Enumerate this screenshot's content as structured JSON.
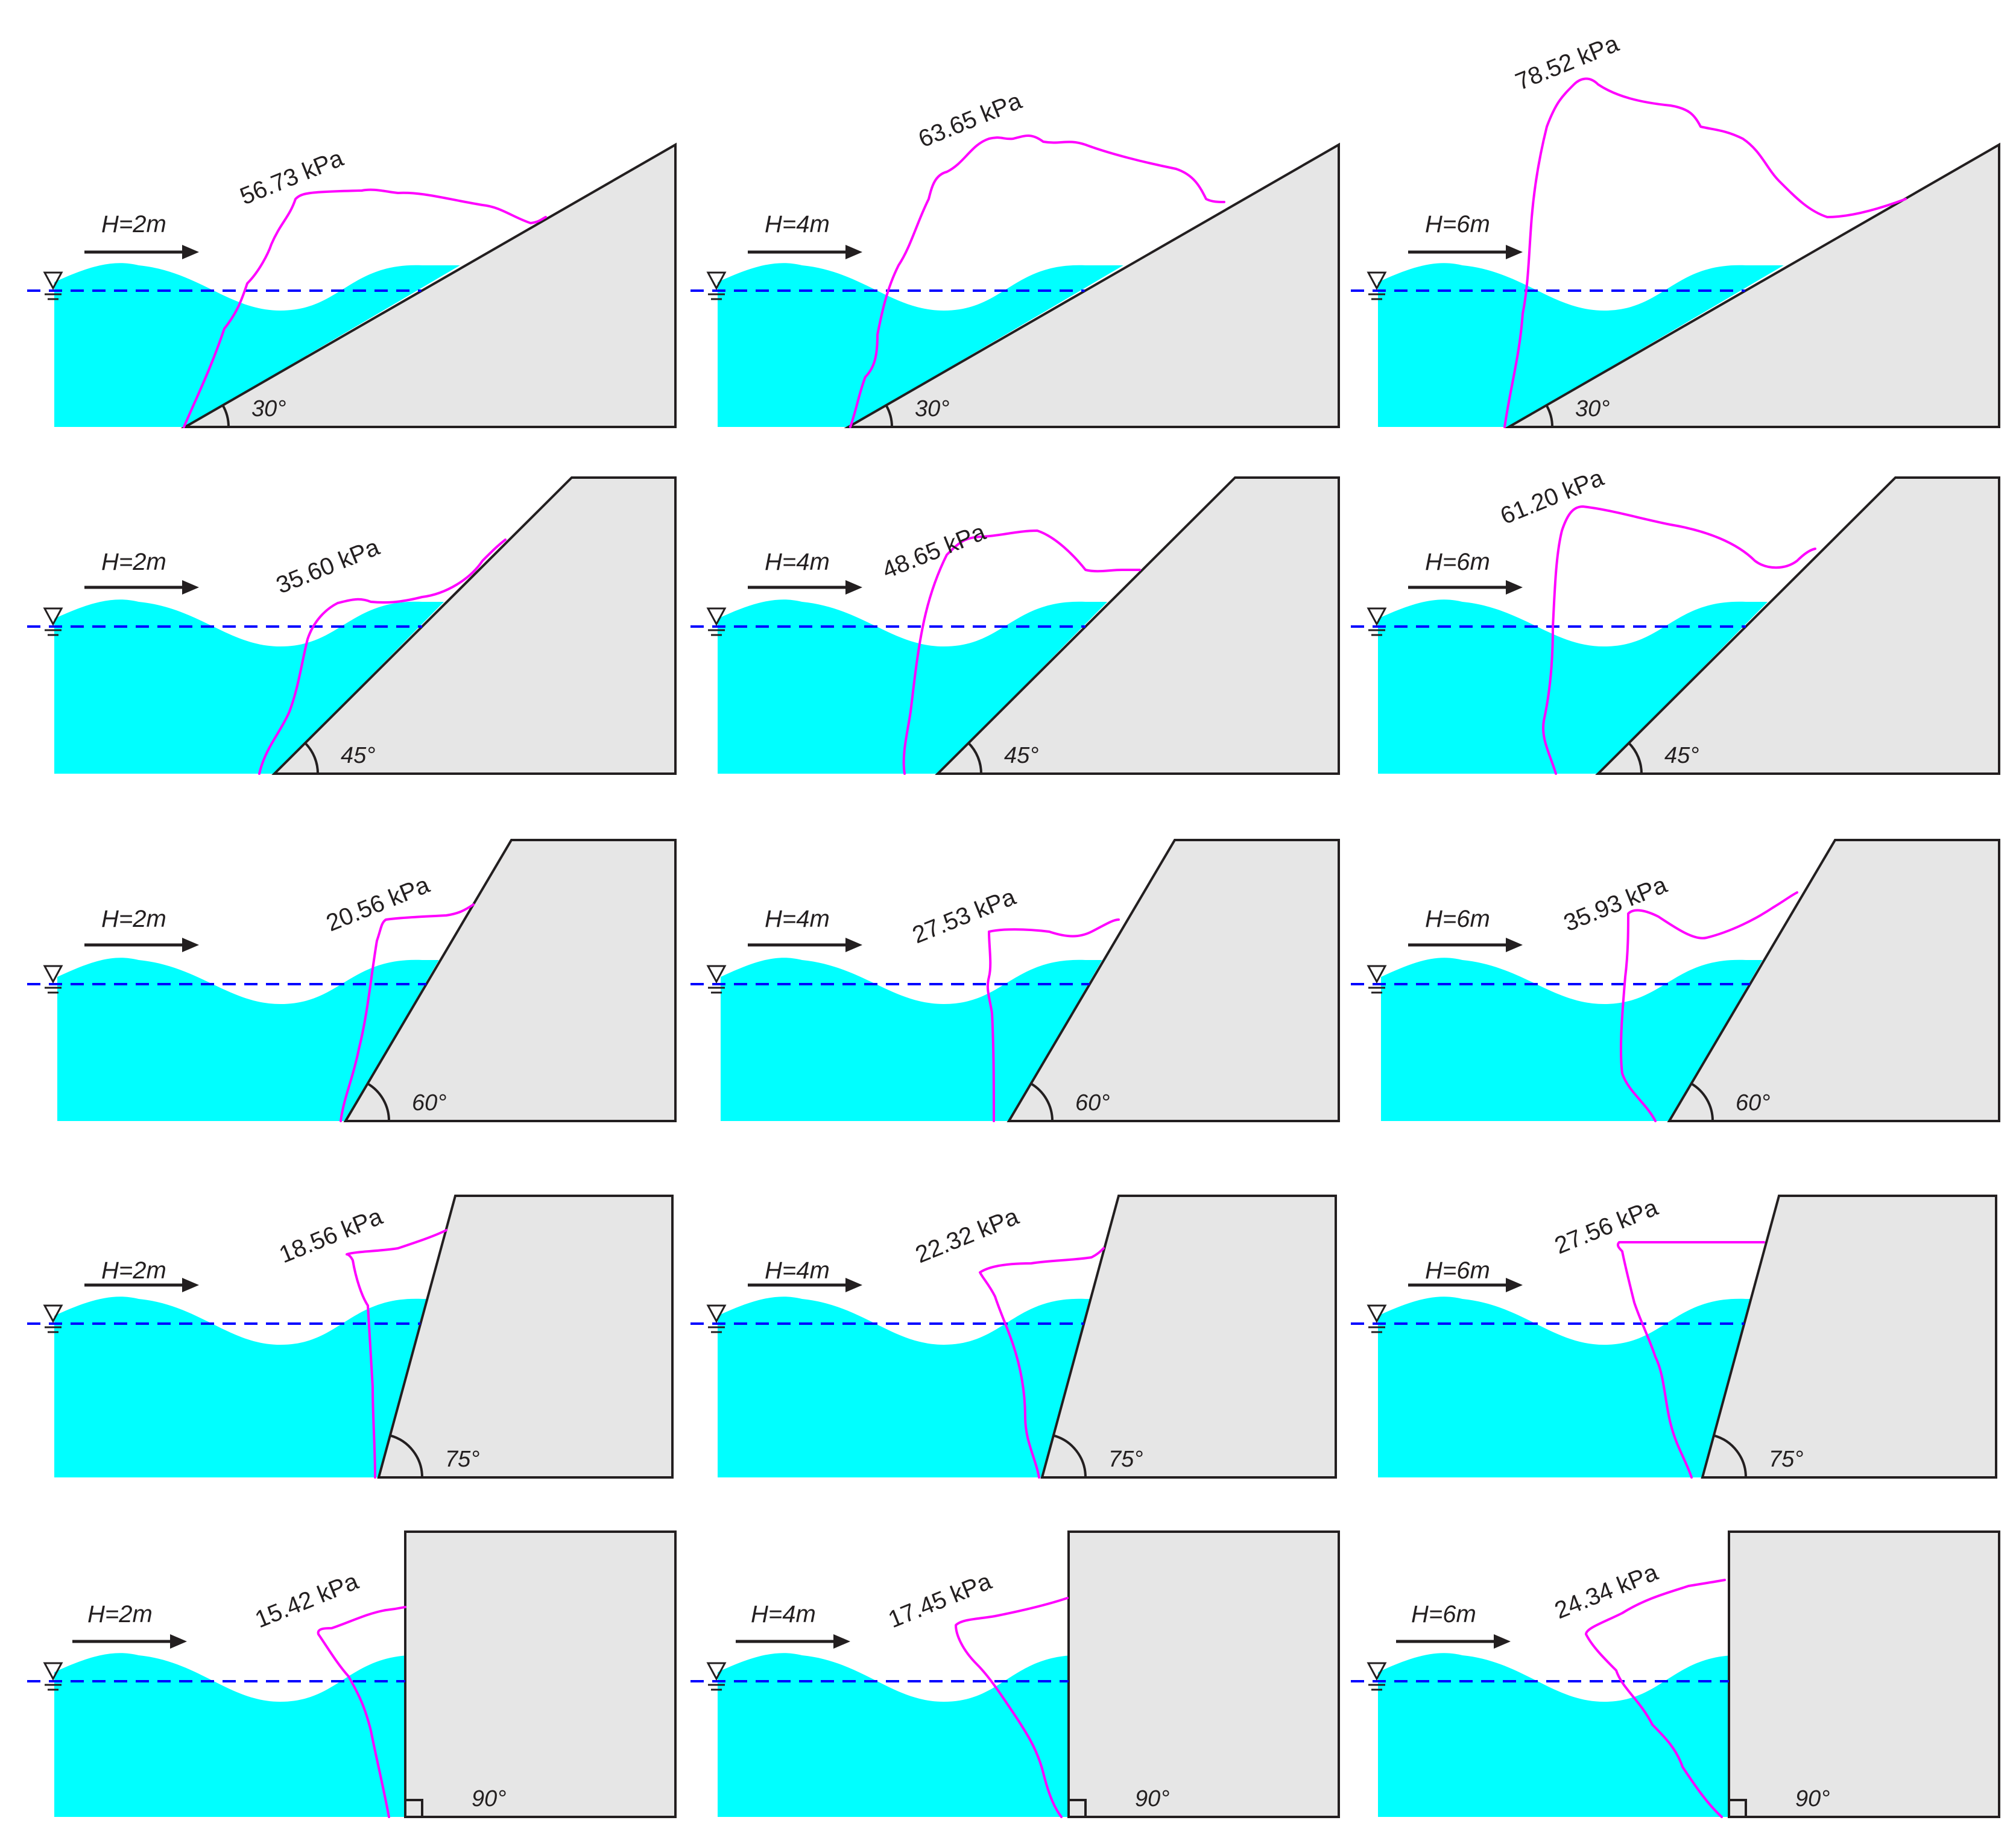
{
  "figure": {
    "colors": {
      "water": "#00ffff",
      "structure": "#e6e6e6",
      "outline": "#231f20",
      "pressure_curve": "#ff00ff",
      "still_water_line": "#0000ff"
    },
    "water_level_symbol": "∇",
    "wave_heights": [
      "H=2m",
      "H=4m",
      "H=6m"
    ],
    "slope_angles": [
      "30°",
      "45°",
      "60°",
      "75°",
      "90°"
    ],
    "panels": [
      {
        "slope": "30°",
        "wave_height": "H=2m",
        "peak_pressure": "56.73 kPa"
      },
      {
        "slope": "30°",
        "wave_height": "H=4m",
        "peak_pressure": "63.65 kPa"
      },
      {
        "slope": "30°",
        "wave_height": "H=6m",
        "peak_pressure": "78.52 kPa"
      },
      {
        "slope": "45°",
        "wave_height": "H=2m",
        "peak_pressure": "35.60 kPa"
      },
      {
        "slope": "45°",
        "wave_height": "H=4m",
        "peak_pressure": "48.65 kPa"
      },
      {
        "slope": "45°",
        "wave_height": "H=6m",
        "peak_pressure": "61.20 kPa"
      },
      {
        "slope": "60°",
        "wave_height": "H=2m",
        "peak_pressure": "20.56 kPa"
      },
      {
        "slope": "60°",
        "wave_height": "H=4m",
        "peak_pressure": "27.53 kPa"
      },
      {
        "slope": "60°",
        "wave_height": "H=6m",
        "peak_pressure": "35.93 kPa"
      },
      {
        "slope": "75°",
        "wave_height": "H=2m",
        "peak_pressure": "18.56 kPa"
      },
      {
        "slope": "75°",
        "wave_height": "H=4m",
        "peak_pressure": "22.32 kPa"
      },
      {
        "slope": "75°",
        "wave_height": "H=6m",
        "peak_pressure": "27.56 kPa"
      },
      {
        "slope": "90°",
        "wave_height": "H=2m",
        "peak_pressure": "15.42 kPa"
      },
      {
        "slope": "90°",
        "wave_height": "H=4m",
        "peak_pressure": "17.45 kPa"
      },
      {
        "slope": "90°",
        "wave_height": "H=6m",
        "peak_pressure": "24.34 kPa"
      }
    ]
  }
}
